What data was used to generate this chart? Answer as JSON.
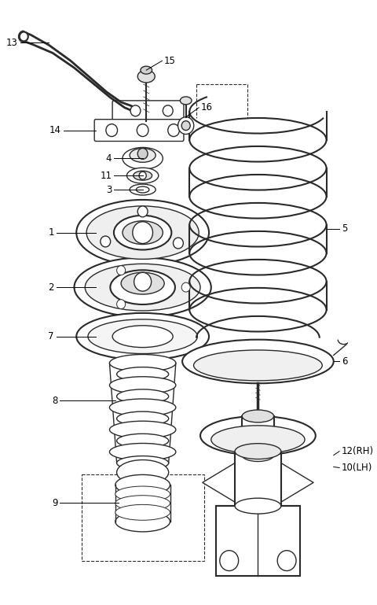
{
  "bg_color": "#ffffff",
  "line_color": "#2a2a2a",
  "fig_width": 4.8,
  "fig_height": 7.69,
  "dpi": 100
}
